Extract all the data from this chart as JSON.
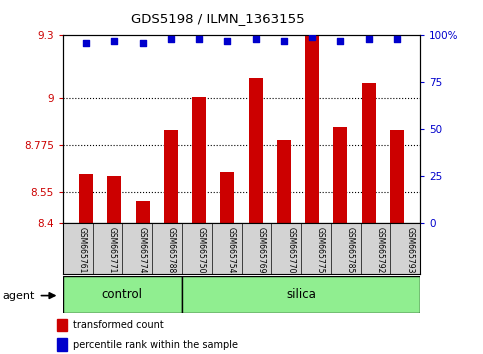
{
  "title": "GDS5198 / ILMN_1363155",
  "samples": [
    "GSM665761",
    "GSM665771",
    "GSM665774",
    "GSM665788",
    "GSM665750",
    "GSM665754",
    "GSM665769",
    "GSM665770",
    "GSM665775",
    "GSM665785",
    "GSM665792",
    "GSM665793"
  ],
  "groups": [
    "control",
    "control",
    "control",
    "control",
    "silica",
    "silica",
    "silica",
    "silica",
    "silica",
    "silica",
    "silica",
    "silica"
  ],
  "red_values": [
    8.635,
    8.625,
    8.505,
    8.845,
    9.005,
    8.645,
    9.095,
    8.8,
    9.3,
    8.86,
    9.07,
    8.845
  ],
  "blue_values": [
    96,
    97,
    96,
    98,
    98,
    97,
    98,
    97,
    99,
    97,
    98,
    98
  ],
  "ylim_left": [
    8.4,
    9.3
  ],
  "ylim_right": [
    0,
    100
  ],
  "yticks_left": [
    8.4,
    8.55,
    8.775,
    9.0,
    9.3
  ],
  "yticks_right": [
    0,
    25,
    50,
    75,
    100
  ],
  "ytick_labels_left": [
    "8.4",
    "8.55",
    "8.775",
    "9",
    "9.3"
  ],
  "ytick_labels_right": [
    "0",
    "25",
    "50",
    "75",
    "100%"
  ],
  "hlines": [
    8.55,
    8.775,
    9.0
  ],
  "control_color": "#90ee90",
  "silica_color": "#90ee90",
  "bar_color": "#cc0000",
  "dot_color": "#0000cc",
  "bg_color": "#d3d3d3",
  "group_label": "agent",
  "legend_red": "transformed count",
  "legend_blue": "percentile rank within the sample"
}
